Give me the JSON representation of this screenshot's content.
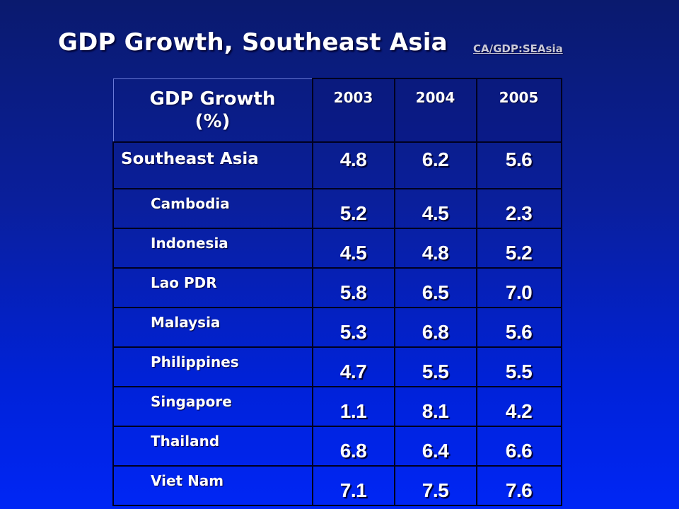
{
  "slide": {
    "title": "GDP Growth, Southeast Asia",
    "link_text": "CA/GDP:SEAsia"
  },
  "table": {
    "header_label_line1": "GDP Growth",
    "header_label_line2": "(%)",
    "years": [
      "2003",
      "2004",
      "2005"
    ],
    "rows": [
      {
        "name": "Southeast Asia",
        "values": [
          "4.8",
          "6.2",
          "5.6"
        ]
      },
      {
        "name": "Cambodia",
        "values": [
          "5.2",
          "4.5",
          "2.3"
        ]
      },
      {
        "name": "Indonesia",
        "values": [
          "4.5",
          "4.8",
          "5.2"
        ]
      },
      {
        "name": "Lao PDR",
        "values": [
          "5.8",
          "6.5",
          "7.0"
        ]
      },
      {
        "name": "Malaysia",
        "values": [
          "5.3",
          "6.8",
          "5.6"
        ]
      },
      {
        "name": "Philippines",
        "values": [
          "4.7",
          "5.5",
          "5.5"
        ]
      },
      {
        "name": "Singapore",
        "values": [
          "1.1",
          "8.1",
          "4.2"
        ]
      },
      {
        "name": "Thailand",
        "values": [
          "6.8",
          "6.4",
          "6.6"
        ]
      },
      {
        "name": "Viet Nam",
        "values": [
          "7.1",
          "7.5",
          "7.6"
        ]
      }
    ]
  }
}
